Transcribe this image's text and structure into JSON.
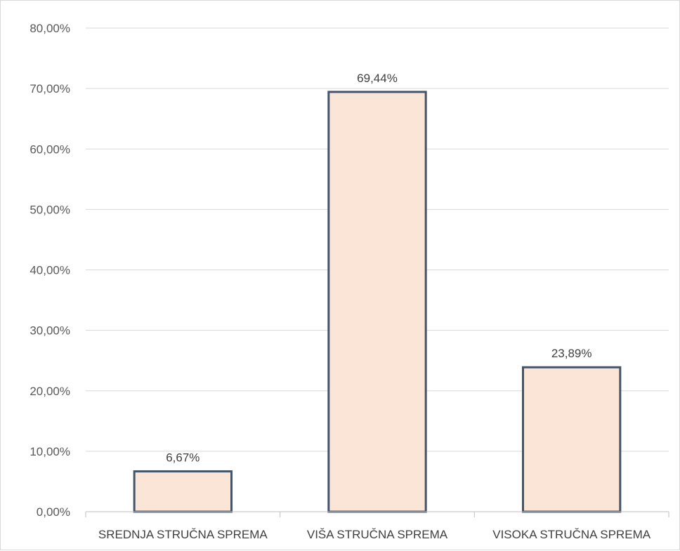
{
  "chart_data": {
    "type": "bar",
    "title": "",
    "xlabel": "",
    "ylabel": "",
    "categories": [
      "SREDNJA STRUČNA SPREMA",
      "VIŠA STRUČNA SPREMA",
      "VISOKA STRUČNA SPREMA"
    ],
    "values": [
      6.67,
      69.44,
      23.89
    ],
    "data_labels": [
      "6,67%",
      "69,44%",
      "23,89%"
    ],
    "ylim": [
      0,
      80
    ],
    "yticks": [
      0,
      10,
      20,
      30,
      40,
      50,
      60,
      70,
      80
    ],
    "ytick_labels": [
      "0,00%",
      "10,00%",
      "20,00%",
      "30,00%",
      "40,00%",
      "50,00%",
      "60,00%",
      "70,00%",
      "80,00%"
    ],
    "grid": true,
    "legend": "none",
    "colors": {
      "bar_fill": "#fbe5d6",
      "bar_stroke": "#44546a",
      "grid": "#d9d9d9",
      "axis": "#bfbfbf"
    }
  }
}
